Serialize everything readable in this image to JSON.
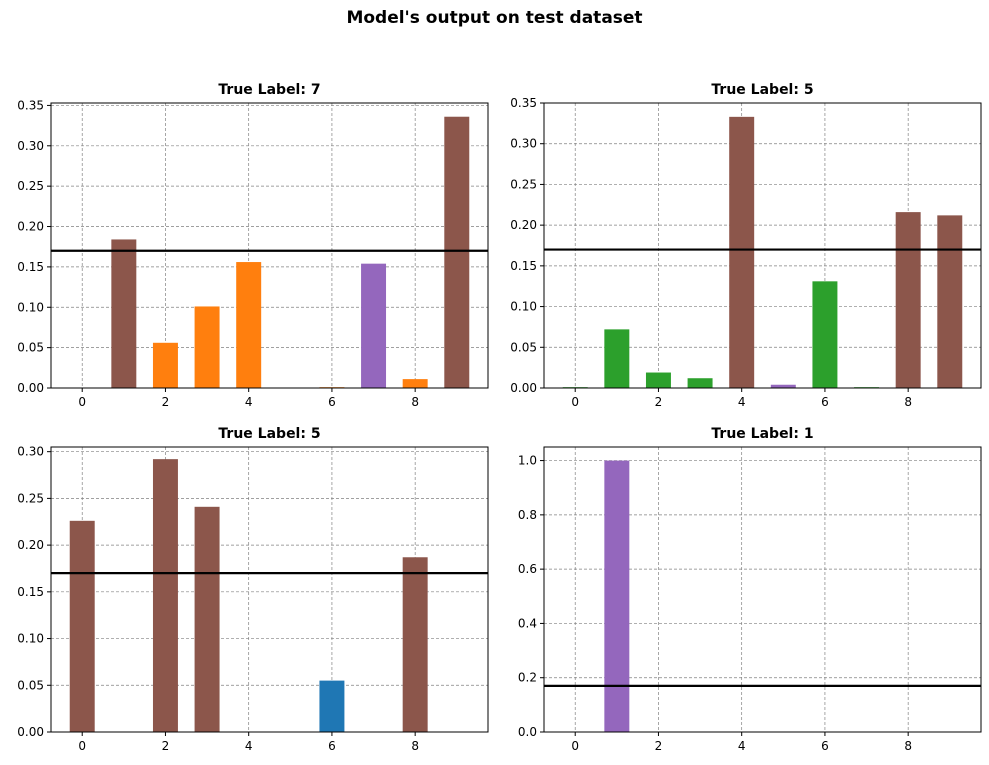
{
  "figure": {
    "title": "Model's output on test dataset"
  },
  "chart_data": [
    {
      "type": "bar",
      "title": "True Label: 7",
      "x": [
        0,
        1,
        2,
        3,
        4,
        5,
        6,
        7,
        8,
        9
      ],
      "values": [
        0.0,
        0.184,
        0.056,
        0.101,
        0.156,
        0.0,
        0.001,
        0.154,
        0.011,
        0.336
      ],
      "bar_colors": [
        "#1f77b4",
        "#8c564b",
        "#ff7f0e",
        "#ff7f0e",
        "#ff7f0e",
        "#ff7f0e",
        "#ff7f0e",
        "#9467bd",
        "#ff7f0e",
        "#8c564b"
      ],
      "threshold": 0.17,
      "xlim": [
        -0.75,
        9.75
      ],
      "ylim": [
        0,
        0.353
      ],
      "xticks": [
        0,
        2,
        4,
        6,
        8
      ],
      "yticks": [
        0.0,
        0.05,
        0.1,
        0.15,
        0.2,
        0.25,
        0.3,
        0.35
      ],
      "ytick_labels": [
        "0.00",
        "0.05",
        "0.10",
        "0.15",
        "0.20",
        "0.25",
        "0.30",
        "0.35"
      ],
      "grid": true
    },
    {
      "type": "bar",
      "title": "True Label: 5",
      "x": [
        0,
        1,
        2,
        3,
        4,
        5,
        6,
        7,
        8,
        9
      ],
      "values": [
        0.001,
        0.072,
        0.019,
        0.012,
        0.333,
        0.004,
        0.131,
        0.001,
        0.216,
        0.212
      ],
      "bar_colors": [
        "#2ca02c",
        "#2ca02c",
        "#2ca02c",
        "#2ca02c",
        "#8c564b",
        "#9467bd",
        "#2ca02c",
        "#2ca02c",
        "#8c564b",
        "#8c564b"
      ],
      "threshold": 0.17,
      "xlim": [
        -0.75,
        9.75
      ],
      "ylim": [
        0,
        0.35
      ],
      "xticks": [
        0,
        2,
        4,
        6,
        8
      ],
      "yticks": [
        0.0,
        0.05,
        0.1,
        0.15,
        0.2,
        0.25,
        0.3,
        0.35
      ],
      "ytick_labels": [
        "0.00",
        "0.05",
        "0.10",
        "0.15",
        "0.20",
        "0.25",
        "0.30",
        "0.35"
      ],
      "grid": true
    },
    {
      "type": "bar",
      "title": "True Label: 5",
      "x": [
        0,
        1,
        2,
        3,
        4,
        5,
        6,
        7,
        8,
        9
      ],
      "values": [
        0.226,
        0.0,
        0.292,
        0.241,
        0.0,
        0.0,
        0.055,
        0.0,
        0.187,
        0.0
      ],
      "bar_colors": [
        "#8c564b",
        "#1f77b4",
        "#8c564b",
        "#8c564b",
        "#1f77b4",
        "#1f77b4",
        "#1f77b4",
        "#1f77b4",
        "#8c564b",
        "#1f77b4"
      ],
      "threshold": 0.17,
      "xlim": [
        -0.75,
        9.75
      ],
      "ylim": [
        0,
        0.305
      ],
      "xticks": [
        0,
        2,
        4,
        6,
        8
      ],
      "yticks": [
        0.0,
        0.05,
        0.1,
        0.15,
        0.2,
        0.25,
        0.3
      ],
      "ytick_labels": [
        "0.00",
        "0.05",
        "0.10",
        "0.15",
        "0.20",
        "0.25",
        "0.30"
      ],
      "grid": true
    },
    {
      "type": "bar",
      "title": "True Label: 1",
      "x": [
        0,
        1,
        2,
        3,
        4,
        5,
        6,
        7,
        8,
        9
      ],
      "values": [
        0.0,
        1.0,
        0.0,
        0.0,
        0.0,
        0.0,
        0.0,
        0.0,
        0.0,
        0.0
      ],
      "bar_colors": [
        "#9467bd",
        "#9467bd",
        "#9467bd",
        "#9467bd",
        "#9467bd",
        "#9467bd",
        "#9467bd",
        "#9467bd",
        "#9467bd",
        "#9467bd"
      ],
      "threshold": 0.17,
      "xlim": [
        -0.75,
        9.75
      ],
      "ylim": [
        0,
        1.05
      ],
      "xticks": [
        0,
        2,
        4,
        6,
        8
      ],
      "yticks": [
        0.0,
        0.2,
        0.4,
        0.6,
        0.8,
        1.0
      ],
      "ytick_labels": [
        "0.0",
        "0.2",
        "0.4",
        "0.6",
        "0.8",
        "1.0"
      ],
      "grid": true
    }
  ]
}
